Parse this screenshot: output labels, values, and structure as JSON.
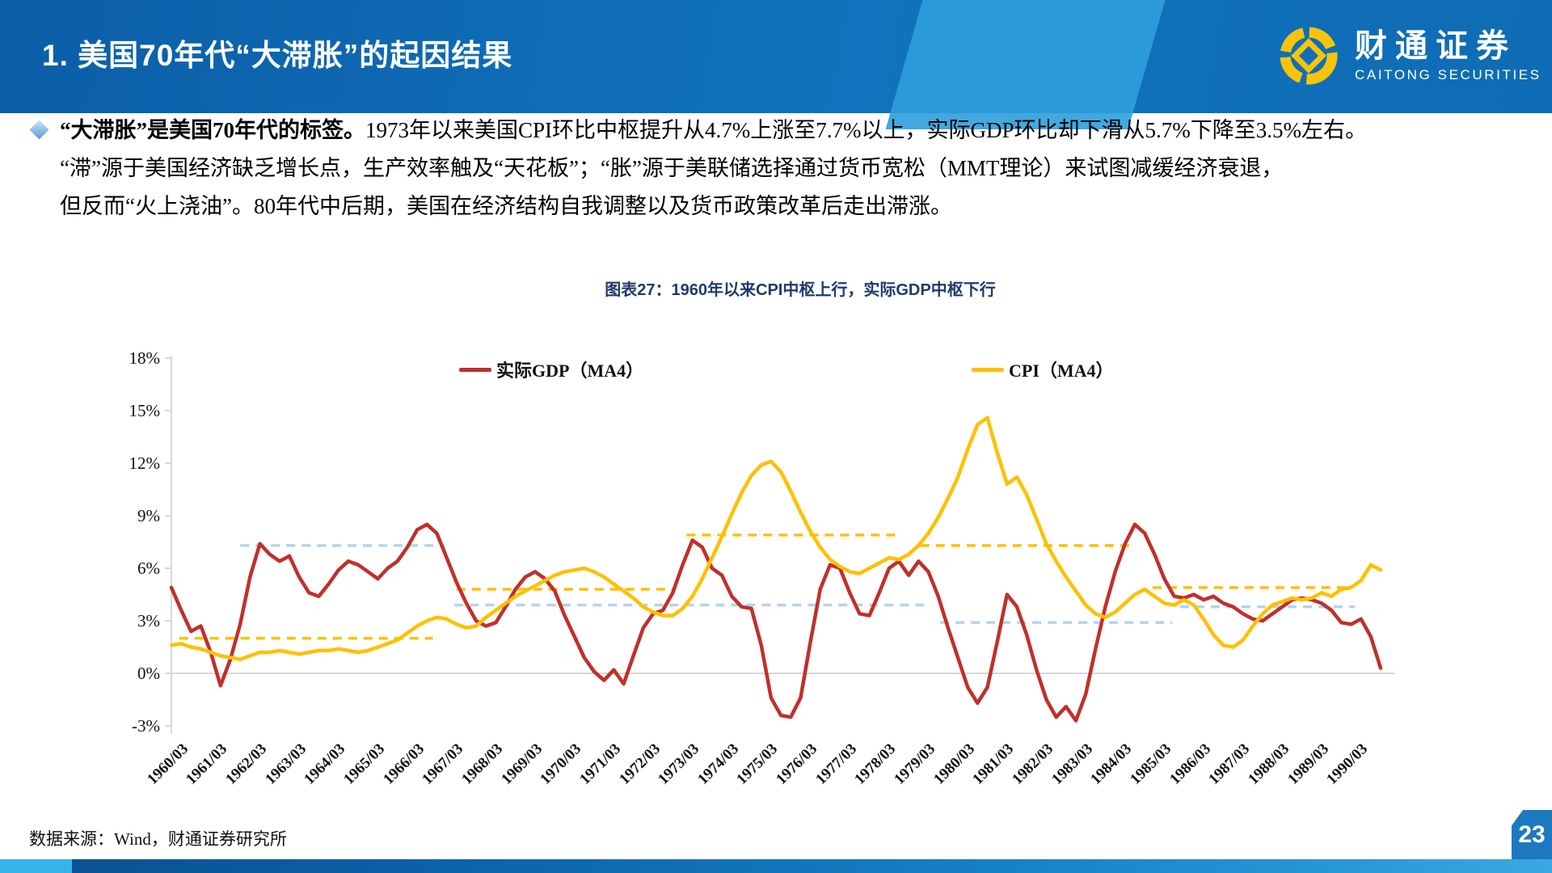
{
  "header": {
    "title": "1. 美国70年代“大滞胀”的起因结果",
    "logo_cn": "财通证券",
    "logo_en": "CAITONG SECURITIES"
  },
  "paragraph": {
    "lines": [
      {
        "bold": "“大滞胀”是美国70年代的标签。",
        "text": "1973年以来美国CPI环比中枢提升从4.7%上涨至7.7%以上，实际GDP环比却下滑从5.7%下降至3.5%左右。"
      },
      {
        "bold": "",
        "text": "“滞”源于美国经济缺乏增长点，生产效率触及“天花板”；“胀”源于美联储选择通过货币宽松（MMT理论）来试图减缓经济衰退，"
      },
      {
        "bold": "",
        "text": "但反而“火上浇油”。80年代中后期，美国在经济结构自我调整以及货币政策改革后走出滞涨。"
      }
    ]
  },
  "chart": {
    "title": "图表27：1960年以来CPI中枢上行，实际GDP中枢下行",
    "colors": {
      "gdp": "#c0302c",
      "cpi": "#ffc000",
      "gdp_median": "#b4d3f0",
      "axis": "#d8d8d8"
    },
    "chart_data": {
      "type": "line",
      "title": "图表27：1960年以来CPI中枢上行，实际GDP中枢下行",
      "x_start": "1960/03",
      "x_end": "1990/12",
      "x_frequency": "quarterly",
      "ylim": [
        -3,
        18
      ],
      "y_ticks": [
        "18%",
        "15%",
        "12%",
        "9%",
        "6%",
        "3%",
        "0%",
        "-3%"
      ],
      "x_labels": [
        "1960/03",
        "1961/03",
        "1962/03",
        "1963/03",
        "1964/03",
        "1965/03",
        "1966/03",
        "1967/03",
        "1968/03",
        "1969/03",
        "1970/03",
        "1971/03",
        "1972/03",
        "1973/03",
        "1974/03",
        "1975/03",
        "1976/03",
        "1977/03",
        "1978/03",
        "1979/03",
        "1980/03",
        "1981/03",
        "1982/03",
        "1983/03",
        "1984/03",
        "1985/03",
        "1986/03",
        "1987/03",
        "1988/03",
        "1989/03",
        "1990/03"
      ],
      "legend_position": "top",
      "grid": "0%-line only",
      "series": [
        {
          "name": "实际GDP（MA4）",
          "color": "#c0302c",
          "values": [
            4.9,
            3.6,
            2.4,
            2.7,
            1.2,
            -0.7,
            0.8,
            2.8,
            5.5,
            7.4,
            6.8,
            6.4,
            6.7,
            5.5,
            4.6,
            4.4,
            5.1,
            5.9,
            6.4,
            6.2,
            5.8,
            5.4,
            6.0,
            6.4,
            7.2,
            8.2,
            8.5,
            8.0,
            6.6,
            5.2,
            4.0,
            3.0,
            2.7,
            2.9,
            3.8,
            4.8,
            5.5,
            5.8,
            5.4,
            4.7,
            3.3,
            2.1,
            0.9,
            0.1,
            -0.4,
            0.2,
            -0.6,
            1.0,
            2.6,
            3.4,
            3.6,
            4.6,
            6.2,
            7.6,
            7.2,
            6.0,
            5.6,
            4.4,
            3.8,
            3.7,
            1.6,
            -1.4,
            -2.4,
            -2.5,
            -1.4,
            1.8,
            4.8,
            6.2,
            6.0,
            4.6,
            3.4,
            3.3,
            4.6,
            6.0,
            6.4,
            5.6,
            6.4,
            5.8,
            4.4,
            2.6,
            0.9,
            -0.8,
            -1.7,
            -0.8,
            1.8,
            4.5,
            3.8,
            2.2,
            0.2,
            -1.5,
            -2.5,
            -1.9,
            -2.7,
            -1.2,
            1.4,
            3.8,
            5.8,
            7.4,
            8.5,
            8.0,
            6.8,
            5.4,
            4.4,
            4.3,
            4.5,
            4.2,
            4.4,
            4.0,
            3.8,
            3.4,
            3.1,
            3.0,
            3.4,
            3.8,
            4.2,
            4.3,
            4.2,
            4.0,
            3.6,
            2.9,
            2.8,
            3.1,
            2.1,
            0.3
          ]
        },
        {
          "name": "CPI（MA4）",
          "color": "#ffc000",
          "values": [
            1.6,
            1.7,
            1.5,
            1.4,
            1.2,
            1.0,
            0.9,
            0.8,
            1.0,
            1.2,
            1.2,
            1.3,
            1.2,
            1.1,
            1.2,
            1.3,
            1.3,
            1.4,
            1.3,
            1.2,
            1.3,
            1.5,
            1.7,
            1.9,
            2.3,
            2.7,
            3.0,
            3.2,
            3.1,
            2.8,
            2.6,
            2.7,
            3.2,
            3.6,
            4.0,
            4.4,
            4.7,
            5.0,
            5.3,
            5.6,
            5.8,
            5.9,
            6.0,
            5.8,
            5.5,
            5.1,
            4.7,
            4.3,
            3.8,
            3.5,
            3.3,
            3.3,
            3.7,
            4.4,
            5.4,
            6.6,
            7.8,
            9.1,
            10.3,
            11.3,
            11.9,
            12.1,
            11.5,
            10.4,
            9.2,
            8.1,
            7.2,
            6.5,
            6.1,
            5.8,
            5.7,
            6.0,
            6.3,
            6.6,
            6.5,
            6.8,
            7.3,
            8.0,
            8.9,
            10.0,
            11.2,
            12.8,
            14.2,
            14.6,
            12.6,
            10.8,
            11.2,
            10.2,
            8.8,
            7.4,
            6.4,
            5.5,
            4.7,
            3.9,
            3.4,
            3.2,
            3.5,
            4.0,
            4.5,
            4.8,
            4.4,
            4.0,
            3.9,
            4.2,
            3.9,
            3.1,
            2.2,
            1.6,
            1.5,
            1.9,
            2.7,
            3.4,
            3.9,
            4.1,
            4.3,
            4.2,
            4.3,
            4.6,
            4.4,
            4.8,
            4.9,
            5.3,
            6.2,
            5.9
          ]
        }
      ],
      "median_segments": {
        "gdp": [
          {
            "from": 1962.0,
            "to": 1967.2,
            "value": 7.3
          },
          {
            "from": 1967.45,
            "to": 1979.4,
            "value": 3.9
          },
          {
            "from": 1979.8,
            "to": 1985.7,
            "value": 2.9
          },
          {
            "from": 1985.9,
            "to": 1990.35,
            "value": 3.8
          }
        ],
        "cpi": [
          {
            "from": 1960.45,
            "to": 1966.9,
            "value": 2.0
          },
          {
            "from": 1967.5,
            "to": 1973.05,
            "value": 4.8
          },
          {
            "from": 1973.35,
            "to": 1978.75,
            "value": 7.9
          },
          {
            "from": 1979.3,
            "to": 1984.75,
            "value": 7.3
          },
          {
            "from": 1985.2,
            "to": 1990.2,
            "value": 4.9
          }
        ]
      }
    }
  },
  "footer": {
    "source": "数据来源：Wind，财通证券研究所",
    "page": "23"
  }
}
